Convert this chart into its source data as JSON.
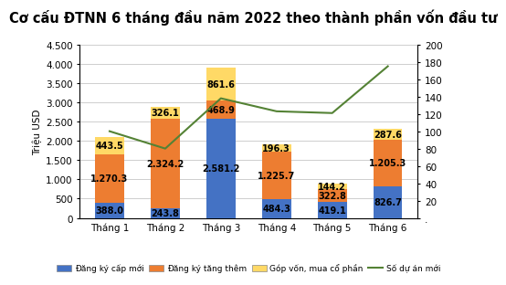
{
  "title": "Cơ cấu ĐTNN 6 tháng đầu năm 2022 theo thành phần vốn đầu tư",
  "categories": [
    "Tháng 1",
    "Tháng 2",
    "Tháng 3",
    "Tháng 4",
    "Tháng 5",
    "Tháng 6"
  ],
  "dang_ky_cap_moi": [
    388.0,
    243.8,
    2581.2,
    484.3,
    419.1,
    826.7
  ],
  "dang_ky_tang_them": [
    1270.3,
    2324.2,
    468.9,
    1225.7,
    322.8,
    1205.3
  ],
  "gop_von_mua_co_phan": [
    443.5,
    326.1,
    861.6,
    196.3,
    144.2,
    287.6
  ],
  "so_du_an_moi": [
    100,
    80,
    138,
    123,
    121,
    175
  ],
  "bar_color_cap_moi": "#4472c4",
  "bar_color_tang_them": "#ed7d31",
  "bar_color_gop_von": "#ffd966",
  "line_color": "#548235",
  "ylabel_left": "Triệu USD",
  "ylim_left": [
    0,
    4500
  ],
  "ylim_right": [
    0,
    200
  ],
  "yticks_left": [
    0,
    500,
    1000,
    1500,
    2000,
    2500,
    3000,
    3500,
    4000,
    4500
  ],
  "yticks_right": [
    0,
    20,
    40,
    60,
    80,
    100,
    120,
    140,
    160,
    180,
    200
  ],
  "legend_cap_moi": "Đăng ký cấp mới",
  "legend_tang_them": "Đăng ký tăng thêm",
  "legend_gop_von": "Góp vốn, mua cổ phần",
  "legend_so_du_an": "Số dự án mới",
  "background_color": "#ffffff",
  "title_fontsize": 10.5,
  "label_fontsize": 7.0,
  "tick_fontsize": 7.5
}
